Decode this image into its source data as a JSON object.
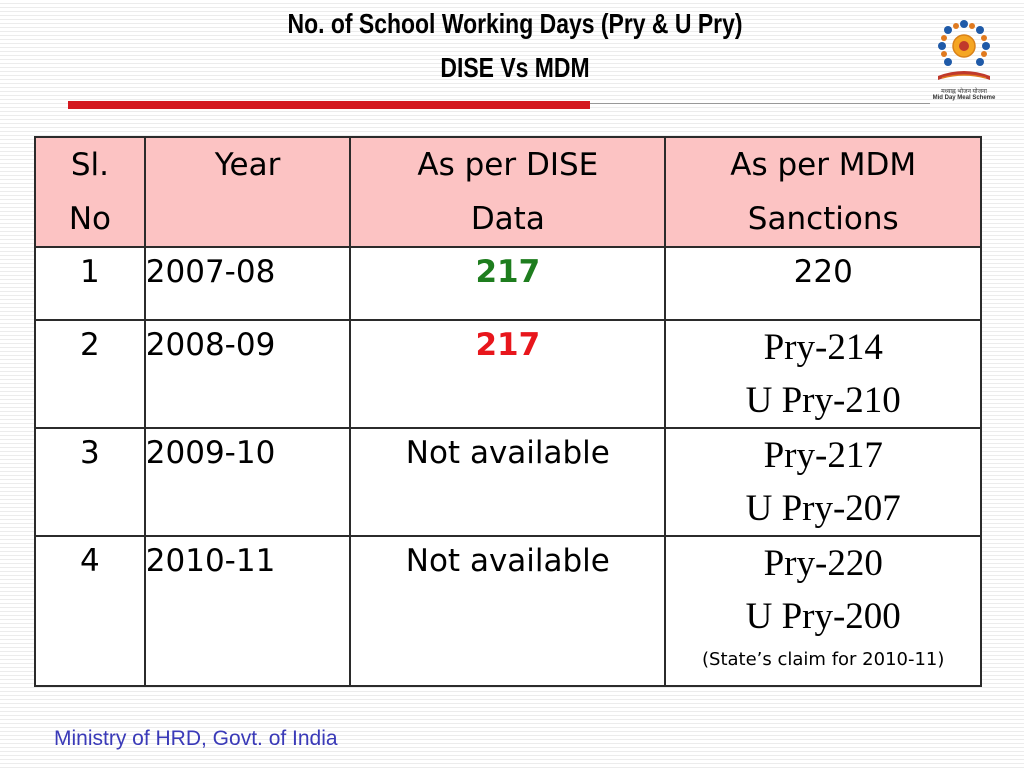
{
  "header": {
    "title_line1": "No. of School Working Days (Pry & U Pry)",
    "title_line2": "DISE Vs MDM",
    "logo_icon": "mid-day-meal-logo",
    "logo_hindi": "मध्याह्न भोजन योजना",
    "logo_english": "Mid Day Meal Scheme",
    "accent_color": "#d41920",
    "header_fill_color": "#fcc3c3"
  },
  "table": {
    "headers": {
      "sl": "Sl. No",
      "year": "Year",
      "dise": "As per DISE Data",
      "mdm": "As per MDM Sanctions"
    },
    "rows": [
      {
        "sl": "1",
        "year": "2007-08",
        "dise": "217",
        "dise_color": "#1e7d1e",
        "mdm": "220"
      },
      {
        "sl": "2",
        "year": "2008-09",
        "dise": "217",
        "dise_color": "#e8161c",
        "mdm_pry": "Pry-214",
        "mdm_upry": "U Pry-210"
      },
      {
        "sl": "3",
        "year": "2009-10",
        "dise": "Not available",
        "mdm_pry": "Pry-217",
        "mdm_upry": "U Pry-207"
      },
      {
        "sl": "4",
        "year": "2010-11",
        "dise": "Not available",
        "mdm_pry": "Pry-220",
        "mdm_upry": "U Pry-200",
        "mdm_note": "(State’s claim for 2010-11)"
      }
    ]
  },
  "footer": {
    "text": "Ministry of HRD, Govt. of India",
    "color": "#3a3ab8"
  }
}
